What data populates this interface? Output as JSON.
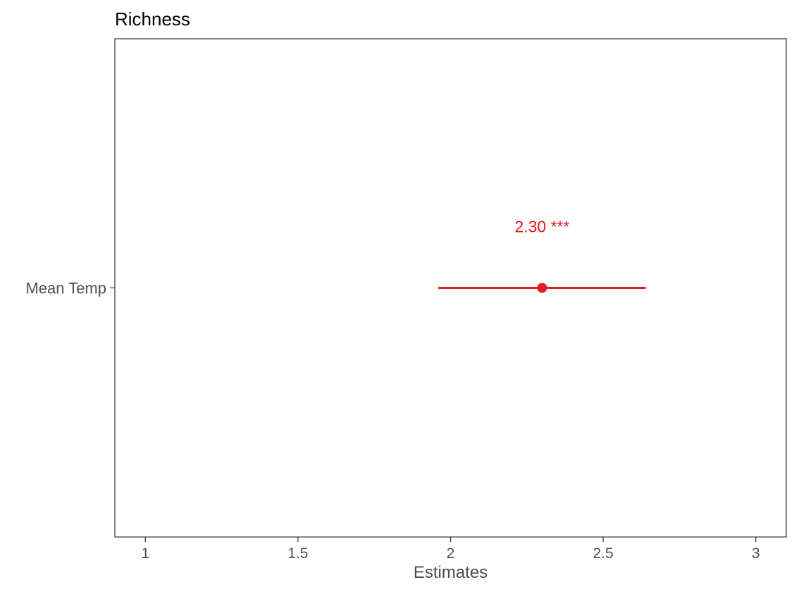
{
  "chart_data": {
    "type": "scatter",
    "title": "Richness",
    "xlabel": "Estimates",
    "ylabel": "",
    "xlim": [
      0.9,
      3.1
    ],
    "x_ticks": [
      1,
      1.5,
      2,
      2.5,
      3
    ],
    "x_tick_labels": [
      "1",
      "1.5",
      "2",
      "2.5",
      "3"
    ],
    "categories": [
      "Mean Temp"
    ],
    "grid": false,
    "points": [
      {
        "term": "Mean Temp",
        "estimate": 2.3,
        "ci_low": 1.96,
        "ci_high": 2.64,
        "label": "2.30 ***"
      }
    ],
    "colors": {
      "point": "#e41a1c",
      "axis_text": "#4d4d4d",
      "title": "#000000",
      "border": "#333333"
    }
  }
}
